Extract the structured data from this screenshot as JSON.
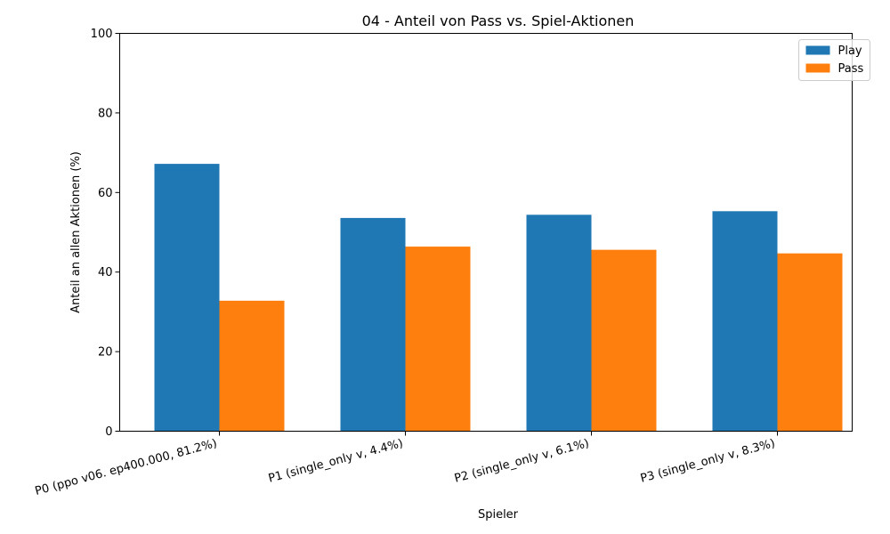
{
  "chart_data": {
    "type": "bar",
    "title": "04 - Anteil von Pass vs. Spiel-Aktionen",
    "xlabel": "Spieler",
    "ylabel": "Anteil an allen Aktionen (%)",
    "ylim": [
      0,
      100
    ],
    "yticks": [
      0,
      20,
      40,
      60,
      80,
      100
    ],
    "grid": false,
    "legend_position": "top-right",
    "categories": [
      "P0 (ppo v06. ep400.000, 81.2%)",
      "P1 (single_only v, 4.4%)",
      "P2 (single_only v, 6.1%)",
      "P3 (single_only v, 8.3%)"
    ],
    "series": [
      {
        "name": "Play",
        "color": "#1f77b4",
        "values": [
          67.2,
          53.6,
          54.4,
          55.3
        ]
      },
      {
        "name": "Pass",
        "color": "#ff7f0e",
        "values": [
          32.8,
          46.4,
          45.6,
          44.7
        ]
      }
    ]
  }
}
